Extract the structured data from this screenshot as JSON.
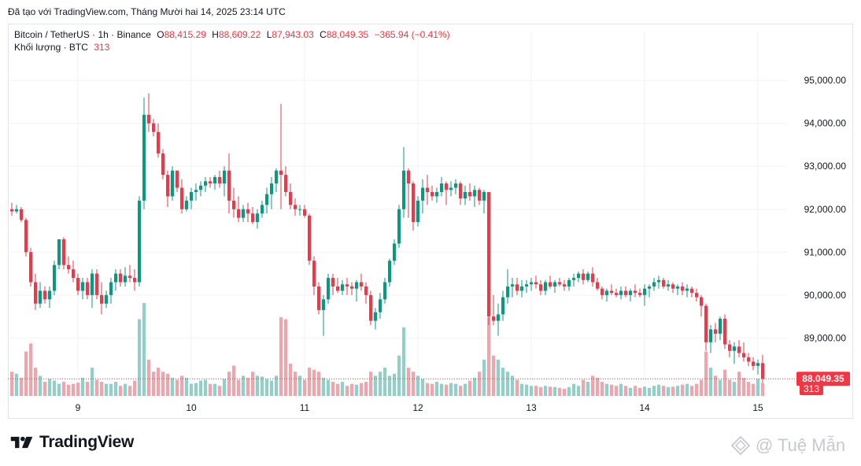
{
  "header": {
    "note": "Đã tạo với TradingView.com, Tháng Mười hai 14, 2025 23:14 UTC"
  },
  "legend": {
    "pair": "Bitcoin / TetherUS · 1h · Binance",
    "o_label": "O",
    "o_value": "88,415.29",
    "h_label": "H",
    "h_value": "88,609.22",
    "l_label": "L",
    "l_value": "87,943.03",
    "c_label": "C",
    "c_value": "88,049.35",
    "change": "−365.94 (−0.41%)",
    "volume_label": "Khối lượng · BTC",
    "volume_value": "313"
  },
  "brand": {
    "name": "TradingView"
  },
  "watermark": {
    "text": "@ Tuệ Mẫn"
  },
  "colors": {
    "up": "#089981",
    "down": "#f23645",
    "vol_up": "#8fd1c8",
    "vol_down": "#f5a3aa",
    "grid": "#f0f3fa",
    "axis_text": "#131722",
    "price_line": "#f23645"
  },
  "chart_data": {
    "type": "candlestick",
    "symbol": "Bitcoin / TetherUS",
    "interval": "1h",
    "exchange": "Binance",
    "y_axis": {
      "ticks": [
        "89,000.00",
        "90,000.00",
        "91,000.00",
        "92,000.00",
        "93,000.00",
        "94,000.00",
        "95,000.00"
      ],
      "tick_values": [
        89000,
        90000,
        91000,
        92000,
        93000,
        94000,
        95000
      ],
      "range": [
        87650,
        95700
      ]
    },
    "x_axis": {
      "ticks": [
        "9",
        "10",
        "11",
        "12",
        "13",
        "14",
        "15"
      ],
      "tick_index": [
        14,
        38,
        62,
        86,
        110,
        134,
        158
      ]
    },
    "current_price_label": "88,049.35",
    "current_volume_label": "313",
    "volume_range": [
      0,
      2300
    ],
    "candles": [
      [
        92000,
        92150,
        91850,
        91950,
        600
      ],
      [
        91950,
        92100,
        91900,
        92000,
        550
      ],
      [
        92000,
        92050,
        91700,
        91750,
        450
      ],
      [
        91750,
        91800,
        90900,
        91000,
        1100
      ],
      [
        91000,
        91100,
        90200,
        90300,
        1300
      ],
      [
        90300,
        90500,
        89650,
        89800,
        700
      ],
      [
        89800,
        90300,
        89700,
        90100,
        500
      ],
      [
        90100,
        90200,
        89800,
        89900,
        350
      ],
      [
        89900,
        90200,
        89700,
        90100,
        420
      ],
      [
        90100,
        90800,
        90000,
        90700,
        380
      ],
      [
        90700,
        91300,
        90600,
        91300,
        300
      ],
      [
        91300,
        91350,
        90600,
        90700,
        350
      ],
      [
        90700,
        90900,
        90500,
        90600,
        280
      ],
      [
        90600,
        90800,
        90300,
        90400,
        300
      ],
      [
        90400,
        90500,
        90000,
        90100,
        330
      ],
      [
        90100,
        90400,
        89900,
        90300,
        450
      ],
      [
        90300,
        90400,
        89900,
        90000,
        350
      ],
      [
        90000,
        90600,
        89700,
        90500,
        700
      ],
      [
        90500,
        90600,
        89900,
        90000,
        400
      ],
      [
        90000,
        90300,
        89550,
        89800,
        350
      ],
      [
        89800,
        90100,
        89700,
        90000,
        300
      ],
      [
        90000,
        90400,
        89800,
        90300,
        300
      ],
      [
        90300,
        90600,
        90100,
        90500,
        350
      ],
      [
        90500,
        90600,
        90200,
        90300,
        250
      ],
      [
        90300,
        90650,
        90200,
        90450,
        300
      ],
      [
        90450,
        90700,
        90300,
        90400,
        250
      ],
      [
        90400,
        90600,
        90100,
        90300,
        380
      ],
      [
        90300,
        92300,
        90200,
        92200,
        1900
      ],
      [
        92200,
        94600,
        92000,
        94200,
        2300
      ],
      [
        94200,
        94700,
        93800,
        94000,
        900
      ],
      [
        94000,
        94100,
        93700,
        93800,
        600
      ],
      [
        93800,
        94000,
        93200,
        93300,
        700
      ],
      [
        93300,
        93400,
        92700,
        92800,
        600
      ],
      [
        92800,
        92900,
        92050,
        92300,
        550
      ],
      [
        92300,
        93000,
        92200,
        92900,
        450
      ],
      [
        92900,
        92900,
        92400,
        92500,
        400
      ],
      [
        92500,
        92700,
        91900,
        92000,
        500
      ],
      [
        92000,
        92300,
        91950,
        92200,
        450
      ],
      [
        92200,
        92500,
        92000,
        92400,
        300
      ],
      [
        92400,
        92600,
        92200,
        92450,
        320
      ],
      [
        92450,
        92650,
        92300,
        92550,
        380
      ],
      [
        92550,
        92750,
        92400,
        92650,
        400
      ],
      [
        92650,
        92750,
        92500,
        92600,
        300
      ],
      [
        92600,
        92800,
        92450,
        92750,
        300
      ],
      [
        92750,
        92900,
        92500,
        92600,
        250
      ],
      [
        92600,
        93000,
        92300,
        92900,
        420
      ],
      [
        92900,
        93300,
        91900,
        92200,
        600
      ],
      [
        92200,
        92500,
        91800,
        92000,
        750
      ],
      [
        92000,
        92300,
        91700,
        91800,
        400
      ],
      [
        91800,
        92100,
        91700,
        92000,
        500
      ],
      [
        92000,
        92150,
        91700,
        91900,
        450
      ],
      [
        91900,
        92050,
        91650,
        91700,
        600
      ],
      [
        91700,
        92000,
        91550,
        91900,
        500
      ],
      [
        91900,
        92200,
        91800,
        92100,
        480
      ],
      [
        92100,
        92500,
        91900,
        92350,
        420
      ],
      [
        92350,
        92750,
        92000,
        92600,
        380
      ],
      [
        92600,
        92950,
        92400,
        92900,
        500
      ],
      [
        92900,
        94450,
        92000,
        92800,
        1950
      ],
      [
        92800,
        93000,
        92300,
        92400,
        1900
      ],
      [
        92400,
        92600,
        92000,
        92100,
        800
      ],
      [
        92100,
        92250,
        91850,
        92000,
        600
      ],
      [
        92000,
        92100,
        91850,
        92000,
        500
      ],
      [
        92000,
        92100,
        91800,
        91850,
        400
      ],
      [
        91850,
        91900,
        90700,
        90800,
        700
      ],
      [
        90800,
        90900,
        90000,
        90200,
        650
      ],
      [
        90200,
        90300,
        89550,
        89650,
        600
      ],
      [
        89650,
        90000,
        89050,
        89900,
        450
      ],
      [
        89900,
        90500,
        89800,
        90400,
        400
      ],
      [
        90400,
        90500,
        90000,
        90200,
        350
      ],
      [
        90200,
        90400,
        90050,
        90100,
        300
      ],
      [
        90100,
        90350,
        90000,
        90250,
        350
      ],
      [
        90250,
        90400,
        90000,
        90200,
        250
      ],
      [
        90200,
        90300,
        90000,
        90150,
        300
      ],
      [
        90150,
        90350,
        89850,
        90300,
        280
      ],
      [
        90300,
        90500,
        90100,
        90200,
        320
      ],
      [
        90200,
        90300,
        89800,
        90000,
        350
      ],
      [
        90000,
        90100,
        89300,
        89400,
        600
      ],
      [
        89400,
        89700,
        89200,
        89600,
        500
      ],
      [
        89600,
        90050,
        89450,
        89900,
        600
      ],
      [
        89900,
        90400,
        89800,
        90300,
        700
      ],
      [
        90300,
        90850,
        90200,
        90800,
        500
      ],
      [
        90800,
        91300,
        90700,
        91200,
        550
      ],
      [
        91200,
        92100,
        91100,
        92000,
        1000
      ],
      [
        92000,
        93450,
        91800,
        92900,
        1700
      ],
      [
        92900,
        92950,
        91800,
        92600,
        700
      ],
      [
        92600,
        92650,
        91500,
        91700,
        600
      ],
      [
        91700,
        92300,
        91600,
        92200,
        500
      ],
      [
        92200,
        92700,
        91900,
        92500,
        420
      ],
      [
        92500,
        92800,
        92100,
        92400,
        320
      ],
      [
        92400,
        92550,
        92200,
        92300,
        300
      ],
      [
        92300,
        92500,
        92150,
        92400,
        350
      ],
      [
        92400,
        92750,
        92300,
        92600,
        300
      ],
      [
        92600,
        92650,
        92100,
        92450,
        280
      ],
      [
        92450,
        92650,
        92300,
        92500,
        320
      ],
      [
        92500,
        92700,
        92350,
        92600,
        300
      ],
      [
        92600,
        92650,
        92100,
        92250,
        250
      ],
      [
        92250,
        92550,
        92100,
        92400,
        300
      ],
      [
        92400,
        92600,
        92200,
        92300,
        380
      ],
      [
        92300,
        92550,
        92050,
        92450,
        450
      ],
      [
        92450,
        92500,
        92100,
        92200,
        600
      ],
      [
        92200,
        92450,
        91900,
        92400,
        900
      ],
      [
        92400,
        92400,
        89300,
        89500,
        1950
      ],
      [
        89500,
        90000,
        89300,
        89400,
        1000
      ],
      [
        89400,
        89800,
        89050,
        89550,
        900
      ],
      [
        89550,
        90100,
        89400,
        89950,
        700
      ],
      [
        89950,
        90600,
        89800,
        90200,
        600
      ],
      [
        90200,
        90400,
        89950,
        90250,
        500
      ],
      [
        90250,
        90400,
        90000,
        90100,
        400
      ],
      [
        90100,
        90350,
        89950,
        90200,
        300
      ],
      [
        90200,
        90350,
        90050,
        90250,
        280
      ],
      [
        90250,
        90400,
        90100,
        90300,
        250
      ],
      [
        90300,
        90450,
        90150,
        90250,
        250
      ],
      [
        90250,
        90350,
        90000,
        90100,
        220
      ],
      [
        90100,
        90350,
        90000,
        90300,
        250
      ],
      [
        90300,
        90450,
        90150,
        90200,
        230
      ],
      [
        90200,
        90350,
        90050,
        90300,
        220
      ],
      [
        90300,
        90400,
        90200,
        90250,
        200
      ],
      [
        90250,
        90350,
        90100,
        90200,
        180
      ],
      [
        90200,
        90400,
        90100,
        90350,
        220
      ],
      [
        90350,
        90500,
        90200,
        90400,
        300
      ],
      [
        90400,
        90550,
        90300,
        90500,
        250
      ],
      [
        90500,
        90600,
        90250,
        90350,
        400
      ],
      [
        90350,
        90550,
        90300,
        90500,
        350
      ],
      [
        90500,
        90650,
        90200,
        90300,
        500
      ],
      [
        90300,
        90400,
        90100,
        90150,
        450
      ],
      [
        90150,
        90200,
        89900,
        90000,
        350
      ],
      [
        90000,
        90150,
        89850,
        90100,
        300
      ],
      [
        90100,
        90250,
        90000,
        90050,
        280
      ],
      [
        90050,
        90150,
        89950,
        90000,
        250
      ],
      [
        90000,
        90200,
        89900,
        90100,
        300
      ],
      [
        90100,
        90200,
        89950,
        90000,
        250
      ],
      [
        90000,
        90150,
        89850,
        90100,
        200
      ],
      [
        90100,
        90250,
        89950,
        90050,
        250
      ],
      [
        90050,
        90150,
        89950,
        90000,
        200
      ],
      [
        90000,
        90250,
        89750,
        90150,
        230
      ],
      [
        90150,
        90250,
        89950,
        90200,
        200
      ],
      [
        90200,
        90400,
        90100,
        90300,
        250
      ],
      [
        90300,
        90450,
        90150,
        90350,
        280
      ],
      [
        90350,
        90400,
        90150,
        90200,
        250
      ],
      [
        90200,
        90350,
        90100,
        90250,
        220
      ],
      [
        90250,
        90300,
        90050,
        90150,
        230
      ],
      [
        90150,
        90250,
        90000,
        90200,
        250
      ],
      [
        90200,
        90300,
        90000,
        90100,
        280
      ],
      [
        90100,
        90250,
        89950,
        90150,
        300
      ],
      [
        90150,
        90200,
        89950,
        90050,
        250
      ],
      [
        90050,
        90150,
        89850,
        89950,
        300
      ],
      [
        89950,
        90000,
        89500,
        89750,
        400
      ],
      [
        89750,
        89800,
        88700,
        88900,
        1100
      ],
      [
        88900,
        89300,
        88650,
        89200,
        700
      ],
      [
        89200,
        89350,
        88900,
        89100,
        500
      ],
      [
        89100,
        89500,
        88950,
        89450,
        400
      ],
      [
        89450,
        89550,
        88750,
        88850,
        650
      ],
      [
        88850,
        88950,
        88550,
        88700,
        400
      ],
      [
        88700,
        88900,
        88400,
        88800,
        350
      ],
      [
        88800,
        88950,
        88550,
        88650,
        600
      ],
      [
        88650,
        88900,
        88450,
        88550,
        450
      ],
      [
        88550,
        88650,
        88350,
        88450,
        350
      ],
      [
        88450,
        88550,
        88250,
        88350,
        300
      ],
      [
        88350,
        88500,
        88150,
        88415,
        420
      ],
      [
        88415.29,
        88609.22,
        87943.03,
        88049.35,
        313
      ]
    ]
  }
}
